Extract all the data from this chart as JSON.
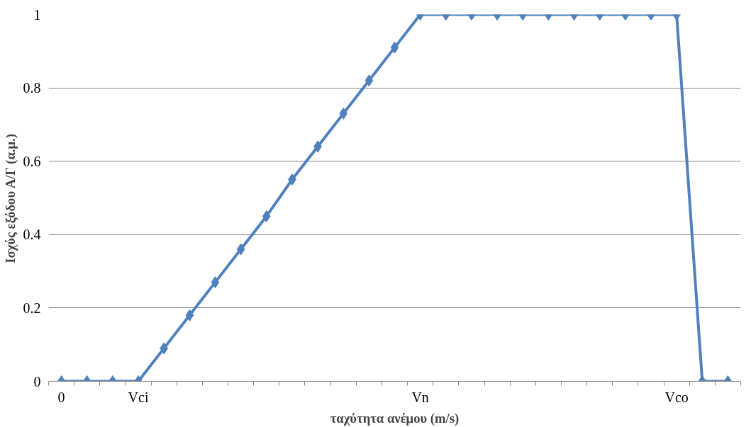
{
  "chart_data": {
    "type": "line",
    "xlabel": "ταχύτητα ανέμου (m/s)",
    "ylabel": "Ισχύς εξόδου Α/Γ (α.μ.)",
    "categories": [
      "0",
      null,
      null,
      "Vci",
      null,
      null,
      null,
      null,
      null,
      null,
      null,
      null,
      null,
      null,
      "Vn",
      null,
      null,
      null,
      null,
      null,
      null,
      null,
      null,
      null,
      "Vco",
      null,
      null
    ],
    "series": [
      {
        "color": "#4f81bd",
        "values": [
          0,
          0,
          0,
          0,
          0.09,
          0.18,
          0.27,
          0.36,
          0.45,
          0.55,
          0.64,
          0.73,
          0.82,
          0.91,
          1,
          1,
          1,
          1,
          1,
          1,
          1,
          1,
          1,
          1,
          1,
          0,
          0
        ]
      }
    ],
    "ylim": [
      0,
      1
    ],
    "yticks": [
      0,
      0.2,
      0.4,
      0.6,
      0.8,
      1
    ],
    "grid": "y",
    "marker": "diamond",
    "line_style": "solid"
  }
}
